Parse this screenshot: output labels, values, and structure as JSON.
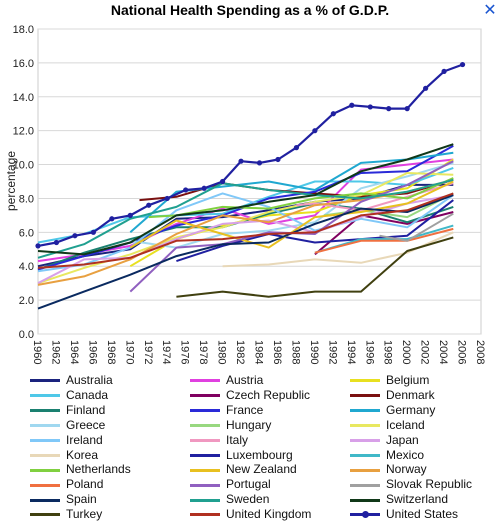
{
  "chart_data": {
    "type": "line",
    "title": "National Health Spending as a % of G.D.P.",
    "ylabel": "percentage",
    "xlabel": "",
    "ylim": [
      0,
      18
    ],
    "yticks": [
      "0.0",
      "2.0",
      "4.0",
      "6.0",
      "8.0",
      "10.0",
      "12.0",
      "14.0",
      "16.0",
      "18.0"
    ],
    "xlim": [
      1960,
      2008
    ],
    "xticks": [
      "1960",
      "1962",
      "1964",
      "1966",
      "1968",
      "1970",
      "1972",
      "1974",
      "1976",
      "1978",
      "1980",
      "1982",
      "1984",
      "1986",
      "1988",
      "1990",
      "1992",
      "1994",
      "1996",
      "1998",
      "2000",
      "2002",
      "2004",
      "2006",
      "2008"
    ],
    "grid": true,
    "legend_position": "bottom",
    "series": [
      {
        "name": "Australia",
        "color": "#1a237e",
        "x": [
          1960,
          1965,
          1970,
          1975,
          1980,
          1985,
          1990,
          1995,
          2000,
          2005
        ],
        "y": [
          4.0,
          4.6,
          5.0,
          6.8,
          6.9,
          7.3,
          7.8,
          8.0,
          8.8,
          8.8
        ]
      },
      {
        "name": "Austria",
        "color": "#e040e0",
        "x": [
          1960,
          1965,
          1970,
          1975,
          1980,
          1985,
          1990,
          1995,
          2000,
          2005
        ],
        "y": [
          4.3,
          4.7,
          5.2,
          6.5,
          7.4,
          6.5,
          7.0,
          9.7,
          10.0,
          10.3
        ]
      },
      {
        "name": "Belgium",
        "color": "#e8e020",
        "x": [
          1970,
          1975,
          1980,
          1985,
          1990,
          1995,
          2000,
          2005
        ],
        "y": [
          4.0,
          5.6,
          6.4,
          7.0,
          7.2,
          8.2,
          8.6,
          10.3
        ]
      },
      {
        "name": "Canada",
        "color": "#4fc8e8",
        "x": [
          1960,
          1965,
          1970,
          1975,
          1980,
          1985,
          1990,
          1995,
          2000,
          2005
        ],
        "y": [
          5.4,
          5.9,
          6.9,
          7.0,
          7.1,
          8.1,
          9.0,
          9.0,
          8.8,
          9.8
        ]
      },
      {
        "name": "Czech Republic",
        "color": "#800060",
        "x": [
          1990,
          1995,
          2000,
          2005
        ],
        "y": [
          4.7,
          7.0,
          6.5,
          7.2
        ]
      },
      {
        "name": "Denmark",
        "color": "#7a1010",
        "x": [
          1971,
          1975,
          1980,
          1985,
          1990,
          1995,
          2000,
          2005
        ],
        "y": [
          7.9,
          8.1,
          8.9,
          8.5,
          8.3,
          8.1,
          8.3,
          9.1
        ]
      },
      {
        "name": "Finland",
        "color": "#1a8070",
        "x": [
          1960,
          1965,
          1970,
          1975,
          1980,
          1985,
          1990,
          1995,
          2000,
          2005
        ],
        "y": [
          3.8,
          4.8,
          5.6,
          6.3,
          6.3,
          7.1,
          7.7,
          7.4,
          6.6,
          7.5
        ]
      },
      {
        "name": "France",
        "color": "#2a2ad8",
        "x": [
          1960,
          1965,
          1970,
          1975,
          1980,
          1985,
          1990,
          1995,
          2000,
          2005
        ],
        "y": [
          3.8,
          4.6,
          5.4,
          6.4,
          7.0,
          8.0,
          8.4,
          9.5,
          9.6,
          11.1
        ]
      },
      {
        "name": "Germany",
        "color": "#20a8d0",
        "x": [
          1970,
          1975,
          1980,
          1985,
          1990,
          1995,
          2000,
          2005
        ],
        "y": [
          6.0,
          8.4,
          8.7,
          9.0,
          8.5,
          10.1,
          10.3,
          10.7
        ]
      },
      {
        "name": "Greece",
        "color": "#a0d8f0",
        "x": [
          1970,
          1975,
          1980,
          1985,
          1990,
          1995,
          2000,
          2005
        ],
        "y": [
          5.5,
          5.1,
          5.9,
          6.1,
          6.6,
          8.6,
          9.3,
          10.1
        ]
      },
      {
        "name": "Hungary",
        "color": "#98d880",
        "x": [
          1991,
          1995,
          2000,
          2005
        ],
        "y": [
          7.0,
          7.3,
          6.9,
          8.3
        ]
      },
      {
        "name": "Iceland",
        "color": "#e8e860",
        "x": [
          1960,
          1965,
          1970,
          1975,
          1980,
          1985,
          1990,
          1995,
          2000,
          2005
        ],
        "y": [
          3.0,
          3.9,
          4.7,
          5.7,
          6.3,
          7.2,
          7.8,
          8.2,
          9.5,
          9.4
        ]
      },
      {
        "name": "Ireland",
        "color": "#80c8f8",
        "x": [
          1960,
          1965,
          1970,
          1975,
          1980,
          1985,
          1990,
          1995,
          2000,
          2005
        ],
        "y": [
          3.7,
          4.1,
          5.1,
          7.3,
          8.3,
          7.5,
          6.1,
          6.8,
          6.3,
          8.2
        ]
      },
      {
        "name": "Italy",
        "color": "#f098c0",
        "x": [
          1988,
          1990,
          1995,
          2000,
          2005
        ],
        "y": [
          7.6,
          7.7,
          7.3,
          8.1,
          8.9
        ]
      },
      {
        "name": "Japan",
        "color": "#d8a0e8",
        "x": [
          1960,
          1965,
          1970,
          1975,
          1980,
          1985,
          1990,
          1995,
          2000,
          2005
        ],
        "y": [
          3.0,
          4.4,
          4.5,
          5.6,
          6.5,
          6.7,
          6.0,
          6.9,
          7.7,
          8.2
        ]
      },
      {
        "name": "Korea",
        "color": "#e8d8b8",
        "x": [
          1980,
          1985,
          1990,
          1995,
          2000,
          2005
        ],
        "y": [
          4.0,
          4.1,
          4.4,
          4.2,
          4.8,
          6.0
        ]
      },
      {
        "name": "Luxembourg",
        "color": "#2020a0",
        "x": [
          1975,
          1980,
          1985,
          1990,
          1995,
          2000,
          2005
        ],
        "y": [
          4.3,
          5.2,
          5.9,
          5.4,
          5.6,
          5.8,
          7.9
        ]
      },
      {
        "name": "Mexico",
        "color": "#40b8c8",
        "x": [
          1990,
          1995,
          2000,
          2005
        ],
        "y": [
          4.8,
          5.6,
          5.6,
          6.4
        ]
      },
      {
        "name": "Netherlands",
        "color": "#80d040",
        "x": [
          1972,
          1975,
          1980,
          1985,
          1990,
          1995,
          2000,
          2005
        ],
        "y": [
          6.9,
          7.0,
          7.5,
          7.4,
          8.0,
          8.3,
          8.0,
          9.2
        ]
      },
      {
        "name": "New Zealand",
        "color": "#e8c020",
        "x": [
          1970,
          1975,
          1980,
          1985,
          1990,
          1995,
          2000,
          2005
        ],
        "y": [
          5.1,
          6.7,
          5.9,
          5.1,
          6.9,
          7.2,
          7.7,
          9.0
        ]
      },
      {
        "name": "Norway",
        "color": "#e8a040",
        "x": [
          1960,
          1965,
          1970,
          1975,
          1980,
          1985,
          1990,
          1995,
          2000,
          2005
        ],
        "y": [
          2.9,
          3.4,
          4.4,
          5.9,
          7.0,
          6.6,
          7.6,
          7.9,
          8.4,
          9.1
        ]
      },
      {
        "name": "Poland",
        "color": "#f07040",
        "x": [
          1990,
          1995,
          2000,
          2005
        ],
        "y": [
          4.8,
          5.5,
          5.5,
          6.2
        ]
      },
      {
        "name": "Portugal",
        "color": "#9060c0",
        "x": [
          1970,
          1975,
          1980,
          1985,
          1990,
          1995,
          2000,
          2005
        ],
        "y": [
          2.5,
          5.1,
          5.3,
          6.0,
          5.9,
          7.8,
          8.8,
          10.2
        ]
      },
      {
        "name": "Slovak Republic",
        "color": "#a0a0a0",
        "x": [
          1997,
          2000,
          2005
        ],
        "y": [
          5.8,
          5.5,
          7.1
        ]
      },
      {
        "name": "Spain",
        "color": "#0a2a60",
        "x": [
          1960,
          1965,
          1970,
          1975,
          1980,
          1985,
          1990,
          1995,
          2000,
          2005
        ],
        "y": [
          1.5,
          2.5,
          3.5,
          4.6,
          5.3,
          5.4,
          6.5,
          7.4,
          7.2,
          8.2
        ]
      },
      {
        "name": "Sweden",
        "color": "#20a090",
        "x": [
          1960,
          1965,
          1970,
          1975,
          1980,
          1985,
          1990,
          1995,
          2000,
          2005
        ],
        "y": [
          4.5,
          5.3,
          6.8,
          7.5,
          8.9,
          8.5,
          8.2,
          8.0,
          8.4,
          9.1
        ]
      },
      {
        "name": "Switzerland",
        "color": "#103818",
        "x": [
          1960,
          1965,
          1970,
          1975,
          1980,
          1985,
          1990,
          1995,
          2000,
          2005
        ],
        "y": [
          4.9,
          4.7,
          5.4,
          7.0,
          7.3,
          7.8,
          8.2,
          9.6,
          10.3,
          11.2
        ]
      },
      {
        "name": "Turkey",
        "color": "#404010",
        "x": [
          1975,
          1980,
          1985,
          1990,
          1995,
          2000,
          2005
        ],
        "y": [
          2.2,
          2.5,
          2.2,
          2.5,
          2.5,
          4.9,
          5.7
        ]
      },
      {
        "name": "United Kingdom",
        "color": "#b03020",
        "x": [
          1960,
          1965,
          1970,
          1975,
          1980,
          1985,
          1990,
          1995,
          2000,
          2005
        ],
        "y": [
          3.9,
          4.1,
          4.5,
          5.5,
          5.6,
          5.9,
          6.0,
          7.0,
          7.3,
          8.3
        ]
      },
      {
        "name": "United States",
        "color": "#2020a0",
        "markers": true,
        "x": [
          1960,
          1962,
          1964,
          1966,
          1968,
          1970,
          1972,
          1974,
          1976,
          1978,
          1980,
          1982,
          1984,
          1986,
          1988,
          1990,
          1992,
          1994,
          1996,
          1998,
          2000,
          2002,
          2004,
          2006
        ],
        "y": [
          5.2,
          5.4,
          5.8,
          6.0,
          6.8,
          7.0,
          7.6,
          8.0,
          8.5,
          8.6,
          9.0,
          10.2,
          10.1,
          10.3,
          11.0,
          12.0,
          13.0,
          13.5,
          13.4,
          13.3,
          13.3,
          14.5,
          15.5,
          15.9
        ]
      }
    ]
  }
}
